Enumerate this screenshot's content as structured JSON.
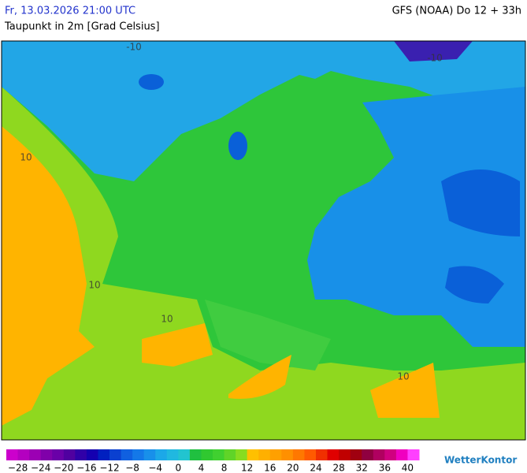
{
  "header": {
    "datetime": "Fr, 13.03.2026 21:00 UTC",
    "variable": "Taupunkt in 2m [Grad Celsius]",
    "model": "GFS (NOAA) Do 12 + 33h"
  },
  "map": {
    "contour_labels": [
      "-10",
      "-10",
      "10",
      "10",
      "10",
      "10"
    ]
  },
  "legend": {
    "bins": [
      -30,
      -28,
      -26,
      -24,
      -22,
      -20,
      -18,
      -16,
      -14,
      -12,
      -10,
      -8,
      -6,
      -4,
      -2,
      0,
      2,
      4,
      6,
      8,
      10,
      12,
      14,
      16,
      18,
      20,
      22,
      24,
      26,
      28,
      30,
      32,
      34,
      36,
      38,
      40,
      42
    ],
    "colors": [
      "#cc00cc",
      "#b400c0",
      "#9c00b4",
      "#8000aa",
      "#6a00a8",
      "#5000a0",
      "#3000a8",
      "#1400b0",
      "#0020c0",
      "#0a40d0",
      "#1060e0",
      "#1478e8",
      "#1890ea",
      "#1ca8e8",
      "#20b8e0",
      "#22c4d0",
      "#20c040",
      "#30c830",
      "#40d030",
      "#60d428",
      "#88dc20",
      "#ffc000",
      "#ffb000",
      "#ffa000",
      "#ff9000",
      "#ff7800",
      "#ff5a00",
      "#f03000",
      "#e00000",
      "#c00000",
      "#a00010",
      "#900040",
      "#b00060",
      "#d00080",
      "#f000c0",
      "#ff40ff"
    ],
    "ticks": [
      {
        "value": -28,
        "label": "−28"
      },
      {
        "value": -24,
        "label": "−24"
      },
      {
        "value": -20,
        "label": "−20"
      },
      {
        "value": -16,
        "label": "−16"
      },
      {
        "value": -12,
        "label": "−12"
      },
      {
        "value": -8,
        "label": "−8"
      },
      {
        "value": -4,
        "label": "−4"
      },
      0,
      4,
      8,
      12,
      16,
      20,
      24,
      28,
      32,
      36,
      40
    ]
  },
  "brand": "WetterKontor"
}
